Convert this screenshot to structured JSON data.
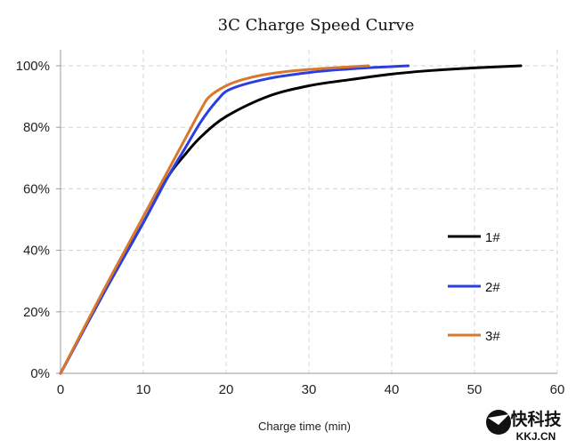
{
  "chart_data": {
    "type": "line",
    "title": "3C Charge Speed Curve",
    "xlabel": "Charge time (min)",
    "ylabel": "",
    "xlim": [
      0,
      60
    ],
    "ylim": [
      0,
      100
    ],
    "xticks": [
      "0",
      "10",
      "20",
      "30",
      "40",
      "50",
      "60"
    ],
    "yticks": [
      "0%",
      "20%",
      "40%",
      "60%",
      "80%",
      "100%"
    ],
    "grid": true,
    "legend_position": "right",
    "series": [
      {
        "name": "1#",
        "color": "#000000",
        "x": [
          0,
          5,
          10,
          13,
          15,
          17,
          20,
          25,
          30,
          35,
          40,
          45,
          50,
          55.6
        ],
        "y": [
          0,
          25,
          49,
          64,
          71,
          77,
          83.5,
          90,
          93.5,
          95.5,
          97.3,
          98.5,
          99.3,
          100
        ]
      },
      {
        "name": "2#",
        "color": "#2b3fe0",
        "x": [
          0,
          5,
          10,
          13,
          15,
          17,
          19,
          20.6,
          25,
          30,
          35,
          42
        ],
        "y": [
          0,
          25,
          49,
          64,
          73,
          82,
          89,
          92.5,
          95.8,
          97.8,
          99,
          100
        ]
      },
      {
        "name": "3#",
        "color": "#d9782d",
        "x": [
          0,
          5,
          10,
          13,
          15,
          17,
          18,
          20,
          22,
          25,
          30,
          37.2
        ],
        "y": [
          0,
          26,
          51,
          66,
          76,
          86,
          90,
          93.5,
          95.5,
          97.3,
          98.8,
          100
        ]
      }
    ]
  },
  "watermark": {
    "brand": "快科技",
    "domain": "KKJ.CN"
  }
}
